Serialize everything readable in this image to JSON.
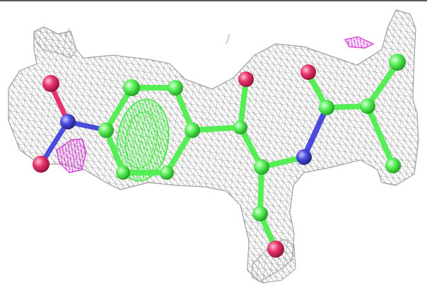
{
  "viewer": {
    "background": "#ffffff",
    "border_color": "#222222"
  },
  "colors": {
    "mesh_gray": "#a8a8a8",
    "mesh_green": "#33ee33",
    "mesh_magenta": "#d633d6",
    "carbon": "#55ee55",
    "oxygen": "#e8336b",
    "nitrogen": "#4a4adf"
  },
  "molecule": {
    "atom_legend": [
      "carbon",
      "oxygen",
      "nitrogen"
    ]
  }
}
